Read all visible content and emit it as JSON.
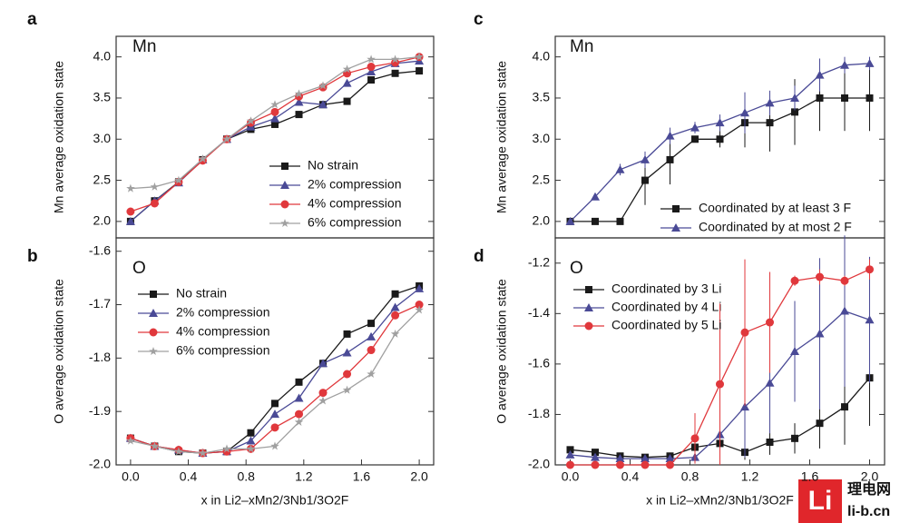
{
  "chart_data": [
    {
      "type": "line",
      "panel": "a",
      "annotation": "Mn",
      "ylabel": "Mn average oxidation state",
      "xlim": [
        -0.1,
        2.1
      ],
      "ylim": [
        1.8,
        4.25
      ],
      "yticks": [
        {
          "value": 2,
          "label": "2.0"
        },
        2.5,
        {
          "value": 3,
          "label": "3.0"
        },
        3.5,
        {
          "value": 4,
          "label": "4.0"
        }
      ],
      "x": [
        0,
        0.1667,
        0.3333,
        0.5,
        0.6667,
        0.8333,
        1,
        1.1667,
        1.3333,
        1.5,
        1.6667,
        1.8333,
        2
      ],
      "series": [
        {
          "name": "No strain",
          "color": "#1a1a1a",
          "marker": "square",
          "values": [
            2.0,
            2.25,
            2.48,
            2.75,
            3.0,
            3.12,
            3.18,
            3.3,
            3.42,
            3.46,
            3.72,
            3.8,
            3.83
          ]
        },
        {
          "name": "2% compression",
          "color": "#4a4a96",
          "marker": "triangle",
          "values": [
            2.0,
            2.25,
            2.47,
            2.75,
            3.0,
            3.15,
            3.25,
            3.45,
            3.42,
            3.68,
            3.82,
            3.92,
            3.95
          ]
        },
        {
          "name": "4% compression",
          "color": "#e0383c",
          "marker": "circle",
          "values": [
            2.12,
            2.22,
            2.48,
            2.74,
            3.0,
            3.2,
            3.33,
            3.52,
            3.63,
            3.8,
            3.88,
            3.93,
            4.0
          ]
        },
        {
          "name": "6% compression",
          "color": "#a0a0a0",
          "marker": "star",
          "values": [
            2.4,
            2.42,
            2.5,
            2.76,
            3.0,
            3.22,
            3.42,
            3.55,
            3.65,
            3.85,
            3.97,
            3.97,
            4.0
          ]
        }
      ]
    },
    {
      "type": "line",
      "panel": "b",
      "annotation": "O",
      "ylabel": "O average oxidation state",
      "xlabel": "x in Li2–xMn2/3Nb1/3O2F",
      "xlim": [
        -0.1,
        2.1
      ],
      "xticks": [
        {
          "value": 0,
          "label": "0.0"
        },
        0.4,
        0.8,
        1.2,
        1.6,
        {
          "value": 2,
          "label": "2.0"
        }
      ],
      "ylim": [
        -2.0,
        -1.575
      ],
      "yticks": [
        {
          "value": -2,
          "label": "-2.0"
        },
        -1.9,
        -1.8,
        -1.7,
        -1.6
      ],
      "x": [
        0,
        0.1667,
        0.3333,
        0.5,
        0.6667,
        0.8333,
        1,
        1.1667,
        1.3333,
        1.5,
        1.6667,
        1.8333,
        2
      ],
      "series": [
        {
          "name": "No strain",
          "color": "#1a1a1a",
          "marker": "square",
          "values": [
            -1.95,
            -1.965,
            -1.975,
            -1.978,
            -1.975,
            -1.94,
            -1.885,
            -1.845,
            -1.81,
            -1.755,
            -1.735,
            -1.68,
            -1.665
          ]
        },
        {
          "name": "2% compression",
          "color": "#4a4a96",
          "marker": "triangle",
          "values": [
            -1.95,
            -1.965,
            -1.972,
            -1.978,
            -1.975,
            -1.955,
            -1.905,
            -1.875,
            -1.81,
            -1.79,
            -1.76,
            -1.705,
            -1.67
          ]
        },
        {
          "name": "4% compression",
          "color": "#e0383c",
          "marker": "circle",
          "values": [
            -1.95,
            -1.965,
            -1.972,
            -1.978,
            -1.975,
            -1.97,
            -1.93,
            -1.905,
            -1.865,
            -1.83,
            -1.785,
            -1.72,
            -1.7
          ]
        },
        {
          "name": "6% compression",
          "color": "#a0a0a0",
          "marker": "star",
          "values": [
            -1.955,
            -1.965,
            -1.975,
            -1.978,
            -1.97,
            -1.97,
            -1.965,
            -1.92,
            -1.88,
            -1.86,
            -1.83,
            -1.755,
            -1.71
          ]
        }
      ]
    },
    {
      "type": "line",
      "panel": "c",
      "annotation": "Mn",
      "ylabel": "Mn average oxidation state",
      "xlim": [
        -0.1,
        2.1
      ],
      "ylim": [
        1.8,
        4.25
      ],
      "yticks": [
        {
          "value": 2,
          "label": "2.0"
        },
        2.5,
        {
          "value": 3,
          "label": "3.0"
        },
        3.5,
        {
          "value": 4,
          "label": "4.0"
        }
      ],
      "x": [
        0,
        0.1667,
        0.3333,
        0.5,
        0.6667,
        0.8333,
        1,
        1.1667,
        1.3333,
        1.5,
        1.6667,
        1.8333,
        2
      ],
      "series": [
        {
          "name": "Coordinated by at least 3 F",
          "color": "#1a1a1a",
          "marker": "square",
          "values": [
            2.0,
            2.0,
            2.0,
            2.5,
            2.75,
            3.0,
            3.0,
            3.2,
            3.2,
            3.33,
            3.5,
            3.5,
            3.5
          ],
          "errors": [
            0,
            0,
            0,
            0.3,
            0.3,
            0,
            0.1,
            0.3,
            0.35,
            0.4,
            0.4,
            0.4,
            0.4
          ]
        },
        {
          "name": "Coordinated by at most 2 F",
          "color": "#4a4a96",
          "marker": "triangle",
          "values": [
            2.0,
            2.3,
            2.63,
            2.75,
            3.04,
            3.14,
            3.2,
            3.32,
            3.44,
            3.5,
            3.78,
            3.9,
            3.92
          ],
          "errors": [
            0,
            0.03,
            0.07,
            0.1,
            0.1,
            0.07,
            0.1,
            0.25,
            0.15,
            0.15,
            0.2,
            0.1,
            0.08
          ]
        }
      ]
    },
    {
      "type": "line",
      "panel": "d",
      "annotation": "O",
      "ylabel": "O average oxidation state",
      "xlabel": "x in Li2–xMn2/3Nb1/3O2F",
      "xlim": [
        -0.1,
        2.1
      ],
      "xticks": [
        {
          "value": 0,
          "label": "0.0"
        },
        0.4,
        0.8,
        1.2,
        1.6,
        {
          "value": 2,
          "label": "2.0"
        }
      ],
      "ylim": [
        -2.0,
        -1.1
      ],
      "yticks": [
        {
          "value": -2,
          "label": "-2.0"
        },
        {
          "value": -1.8,
          "label": "-1.8"
        },
        {
          "value": -1.6,
          "label": "-1.6"
        },
        {
          "value": -1.4,
          "label": "-1.4"
        },
        {
          "value": -1.2,
          "label": "-1.2"
        }
      ],
      "x": [
        0,
        0.1667,
        0.3333,
        0.5,
        0.6667,
        0.8333,
        1,
        1.1667,
        1.3333,
        1.5,
        1.6667,
        1.8333,
        2
      ],
      "series": [
        {
          "name": "Coordinated by 3 Li",
          "color": "#1a1a1a",
          "marker": "square",
          "values": [
            -1.94,
            -1.95,
            -1.965,
            -1.97,
            -1.965,
            -1.93,
            -1.915,
            -1.95,
            -1.91,
            -1.895,
            -1.835,
            -1.77,
            -1.655
          ],
          "errors": [
            0.01,
            0.01,
            0.01,
            0.01,
            0.01,
            0.03,
            0.05,
            0.03,
            0.05,
            0.06,
            0.1,
            0.15,
            0.19
          ]
        },
        {
          "name": "Coordinated by 4 Li",
          "color": "#4a4a96",
          "marker": "triangle",
          "values": [
            -1.96,
            -1.97,
            -1.975,
            -1.975,
            -1.975,
            -1.97,
            -1.88,
            -1.77,
            -1.675,
            -1.55,
            -1.48,
            -1.39,
            -1.425
          ],
          "errors": [
            0.01,
            0.01,
            0.01,
            0.01,
            0.01,
            0.02,
            0.1,
            0.2,
            0.2,
            0.2,
            0.3,
            0.3,
            0.25
          ]
        },
        {
          "name": "Coordinated by 5 Li",
          "color": "#e0383c",
          "marker": "circle",
          "values": [
            -2.0,
            -2.0,
            -2.0,
            -2.0,
            -2.0,
            -1.895,
            -1.68,
            -1.475,
            -1.435,
            -1.27,
            -1.255,
            -1.27,
            -1.225
          ],
          "errors": [
            0,
            0,
            0,
            0,
            0,
            0.1,
            0.32,
            0.29,
            0.2,
            0.02,
            0.03,
            0.02,
            0.04
          ]
        }
      ]
    }
  ],
  "watermark": {
    "logo": "Li",
    "name": "理电网",
    "site": "li-b.cn"
  }
}
